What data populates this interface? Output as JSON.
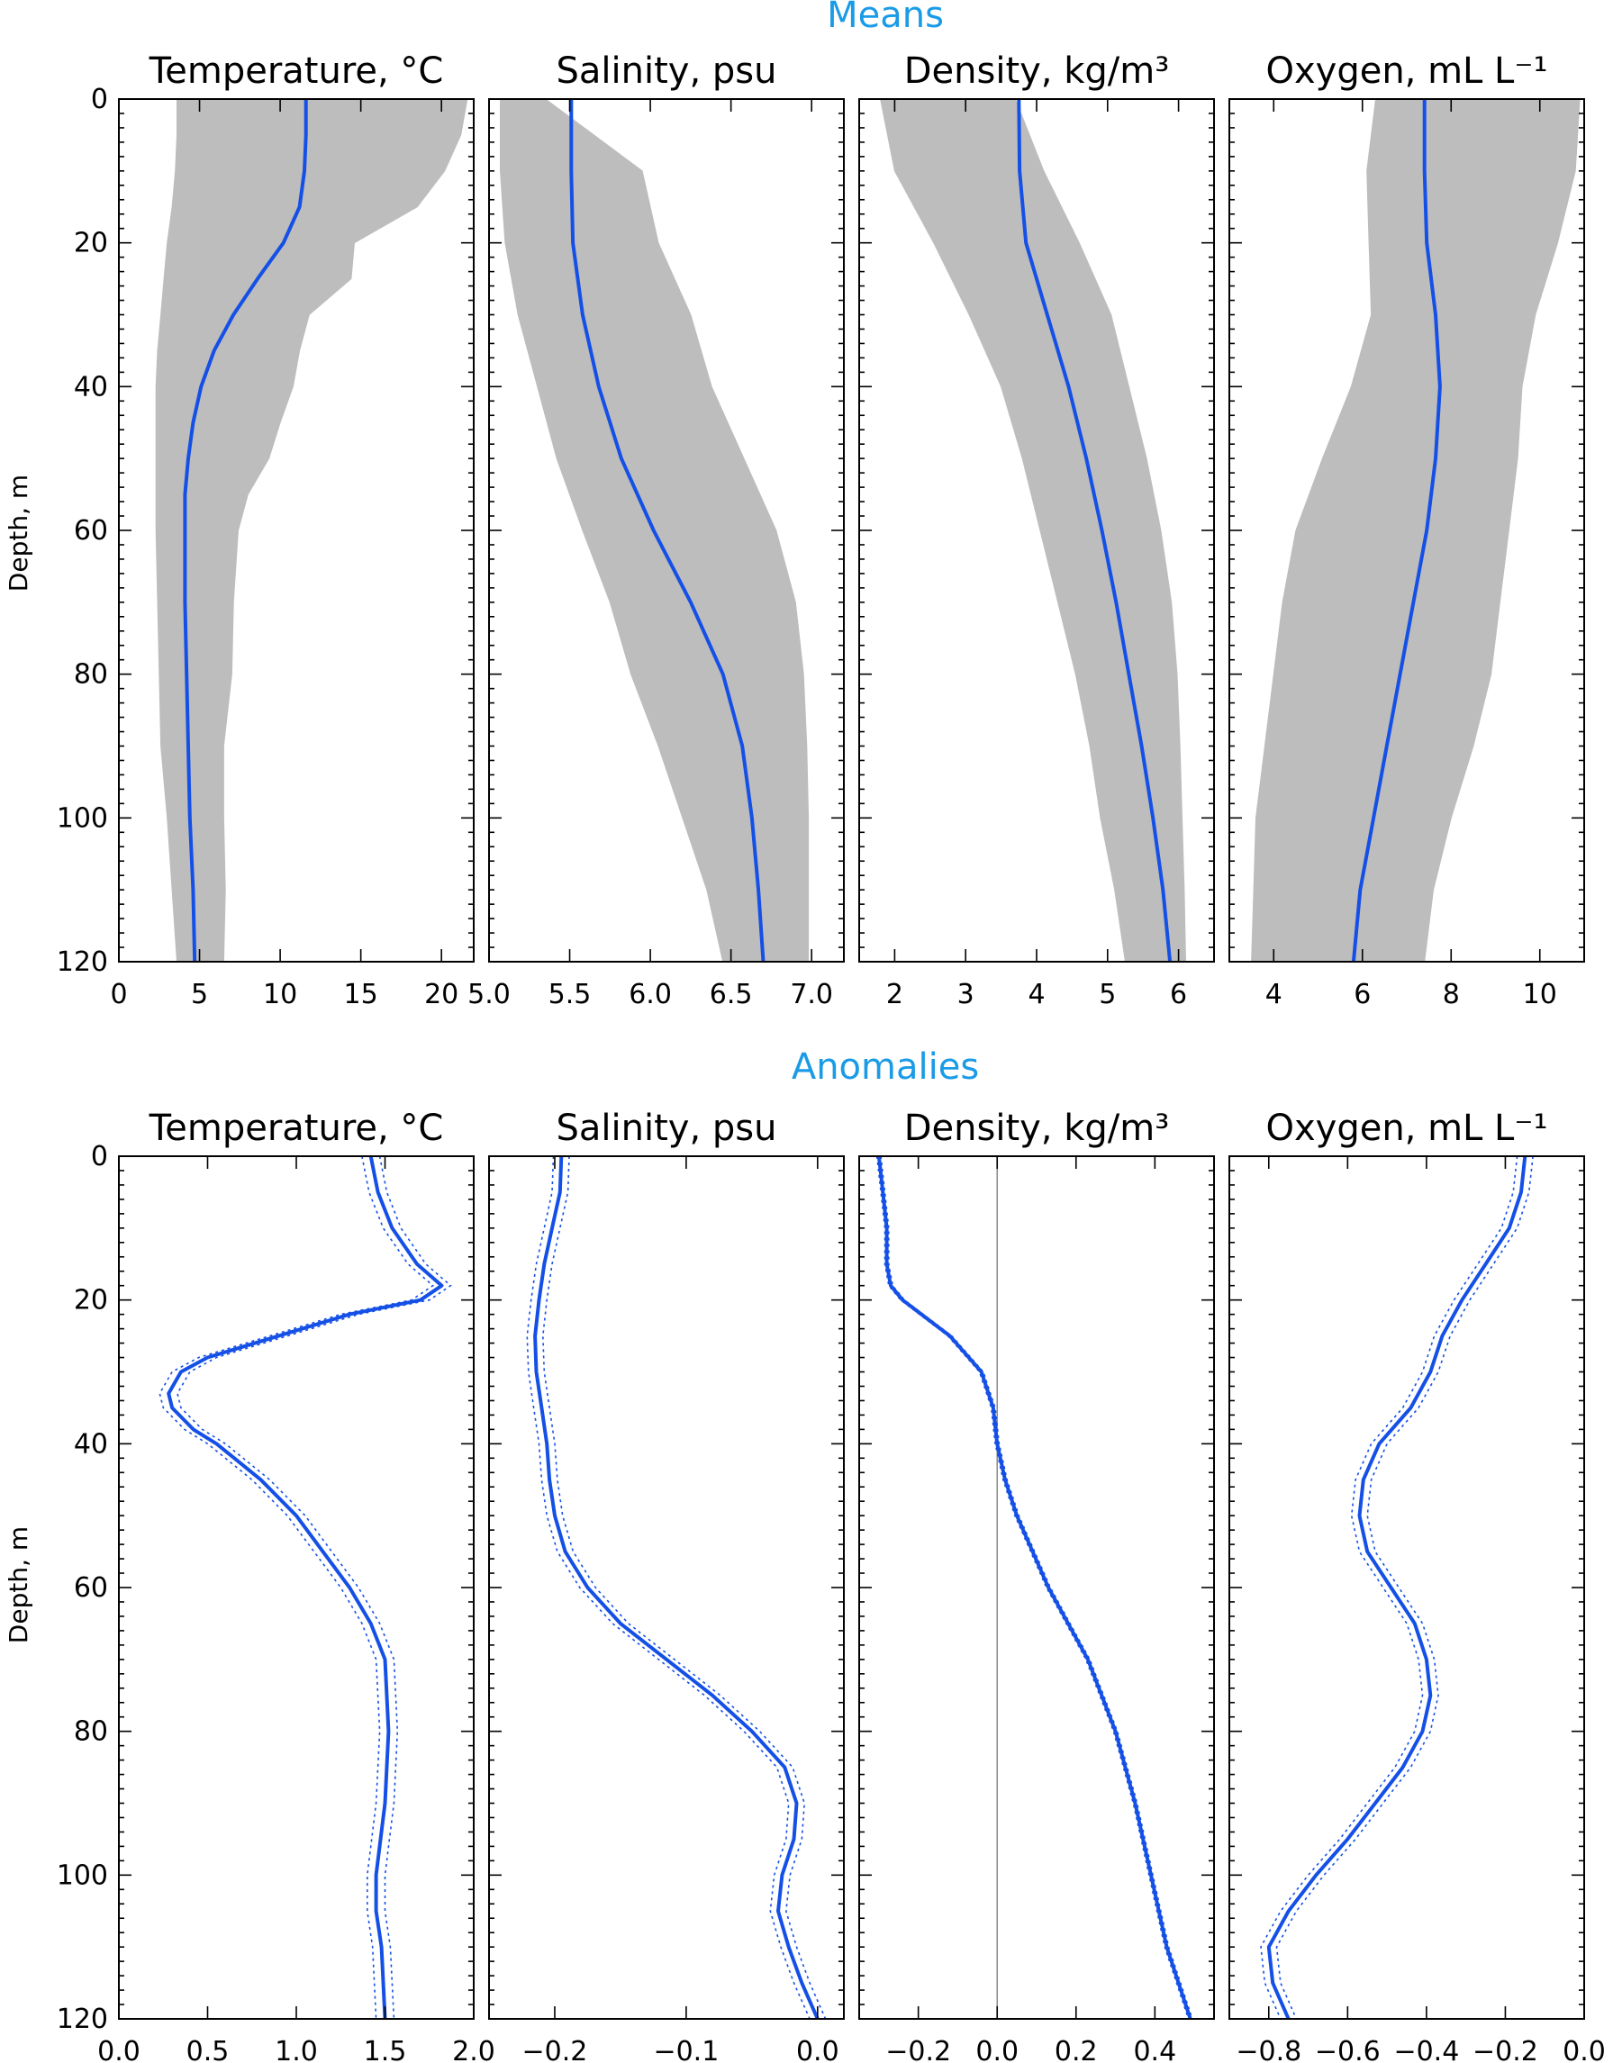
{
  "sections": {
    "means_title": "Means",
    "anomalies_title": "Anomalies"
  },
  "ylabel": "Depth, m",
  "colors": {
    "mean_line": "#1550e6",
    "spread_fill": "#bdbdbd",
    "section_title": "#1a9be6",
    "zero_line": "#8a8a8a"
  },
  "chart_data": [
    {
      "type": "line",
      "group": "Means",
      "title": "Temperature, °C",
      "xlabel": "",
      "ylabel": "Depth, m",
      "xlim": [
        0,
        22
      ],
      "ylim": [
        120,
        0
      ],
      "xticks": [
        0,
        5,
        10,
        15,
        20
      ],
      "xtick_labels": [
        "0",
        "5",
        "10",
        "15",
        "20"
      ],
      "yticks": [
        0,
        20,
        40,
        60,
        80,
        100,
        120
      ],
      "ytick_labels": [
        "0",
        "20",
        "40",
        "60",
        "80",
        "100",
        "120"
      ],
      "depth": [
        0,
        5,
        10,
        15,
        20,
        25,
        30,
        35,
        40,
        45,
        50,
        55,
        60,
        70,
        80,
        90,
        100,
        110,
        120
      ],
      "mean": [
        11.6,
        11.6,
        11.5,
        11.2,
        10.2,
        8.6,
        7.1,
        5.9,
        5.1,
        4.6,
        4.3,
        4.1,
        4.1,
        4.1,
        4.2,
        4.3,
        4.4,
        4.6,
        4.7
      ],
      "spread_left": [
        3.6,
        3.6,
        3.5,
        3.3,
        3.0,
        2.8,
        2.6,
        2.4,
        2.3,
        2.3,
        2.3,
        2.3,
        2.3,
        2.4,
        2.5,
        2.6,
        3.0,
        3.3,
        3.6
      ],
      "spread_right": [
        21.6,
        21.2,
        20.2,
        18.5,
        14.6,
        14.4,
        11.8,
        11.2,
        10.8,
        10.0,
        9.3,
        8.0,
        7.4,
        7.1,
        7.0,
        6.5,
        6.5,
        6.6,
        6.5
      ]
    },
    {
      "type": "line",
      "group": "Means",
      "title": "Salinity, psu",
      "xlabel": "",
      "ylabel": "",
      "xlim": [
        5.0,
        7.2
      ],
      "ylim": [
        120,
        0
      ],
      "xticks": [
        5.0,
        5.5,
        6.0,
        6.5,
        7.0
      ],
      "xtick_labels": [
        "5.0",
        "5.5",
        "6.0",
        "6.5",
        "7.0"
      ],
      "yticks": [
        0,
        20,
        40,
        60,
        80,
        100,
        120
      ],
      "depth": [
        0,
        10,
        20,
        30,
        40,
        50,
        60,
        70,
        80,
        90,
        100,
        110,
        120
      ],
      "mean": [
        5.51,
        5.51,
        5.52,
        5.58,
        5.68,
        5.82,
        6.02,
        6.25,
        6.45,
        6.57,
        6.63,
        6.67,
        6.7
      ],
      "spread_left": [
        5.07,
        5.07,
        5.1,
        5.18,
        5.3,
        5.42,
        5.58,
        5.75,
        5.88,
        6.05,
        6.2,
        6.35,
        6.45
      ],
      "spread_right": [
        5.35,
        5.95,
        6.05,
        6.25,
        6.38,
        6.58,
        6.78,
        6.9,
        6.95,
        6.97,
        6.98,
        6.98,
        6.98
      ]
    },
    {
      "type": "line",
      "group": "Means",
      "title": "Density, kg/m³",
      "xlabel": "",
      "ylabel": "",
      "xlim": [
        1.5,
        6.5
      ],
      "ylim": [
        120,
        0
      ],
      "xticks": [
        2,
        3,
        4,
        5,
        6
      ],
      "xtick_labels": [
        "2",
        "3",
        "4",
        "5",
        "6"
      ],
      "yticks": [
        0,
        20,
        40,
        60,
        80,
        100,
        120
      ],
      "depth": [
        0,
        10,
        20,
        30,
        40,
        50,
        60,
        70,
        80,
        90,
        100,
        110,
        120
      ],
      "mean": [
        3.75,
        3.76,
        3.85,
        4.15,
        4.45,
        4.7,
        4.92,
        5.12,
        5.3,
        5.48,
        5.64,
        5.78,
        5.88
      ],
      "spread_left": [
        1.8,
        2.0,
        2.55,
        3.05,
        3.5,
        3.8,
        4.05,
        4.3,
        4.55,
        4.75,
        4.9,
        5.1,
        5.25
      ],
      "spread_right": [
        3.7,
        4.1,
        4.6,
        5.05,
        5.3,
        5.55,
        5.75,
        5.9,
        5.98,
        6.02,
        6.05,
        6.08,
        6.1
      ]
    },
    {
      "type": "line",
      "group": "Means",
      "title": "Oxygen, mL L⁻¹",
      "xlabel": "",
      "ylabel": "",
      "xlim": [
        3.0,
        11.0
      ],
      "ylim": [
        120,
        0
      ],
      "xticks": [
        4,
        6,
        8,
        10
      ],
      "xtick_labels": [
        "4",
        "6",
        "8",
        "10"
      ],
      "yticks": [
        0,
        20,
        40,
        60,
        80,
        100,
        120
      ],
      "depth": [
        0,
        10,
        20,
        30,
        40,
        50,
        60,
        70,
        80,
        90,
        100,
        110,
        120
      ],
      "mean": [
        7.4,
        7.4,
        7.45,
        7.65,
        7.75,
        7.65,
        7.45,
        7.15,
        6.85,
        6.55,
        6.25,
        5.95,
        5.8
      ],
      "spread_left": [
        6.3,
        6.1,
        6.15,
        6.2,
        5.75,
        5.1,
        4.5,
        4.2,
        4.0,
        3.8,
        3.6,
        3.55,
        3.5
      ],
      "spread_right": [
        10.9,
        10.8,
        10.4,
        9.9,
        9.6,
        9.5,
        9.3,
        9.1,
        8.9,
        8.5,
        8.0,
        7.6,
        7.4
      ]
    },
    {
      "type": "line",
      "group": "Anomalies",
      "title": "Temperature, °C",
      "xlabel": "",
      "ylabel": "Depth, m",
      "xlim": [
        0.0,
        2.0
      ],
      "ylim": [
        120,
        0
      ],
      "xticks": [
        0.0,
        0.5,
        1.0,
        1.5,
        2.0
      ],
      "xtick_labels": [
        "0.0",
        "0.5",
        "1.0",
        "1.5",
        "2.0"
      ],
      "yticks": [
        0,
        20,
        40,
        60,
        80,
        100,
        120
      ],
      "ytick_labels": [
        "0",
        "20",
        "40",
        "60",
        "80",
        "100",
        "120"
      ],
      "depth": [
        0,
        5,
        10,
        15,
        18,
        20,
        22,
        25,
        28,
        30,
        33,
        35,
        38,
        40,
        45,
        50,
        55,
        60,
        65,
        70,
        80,
        90,
        100,
        105,
        110,
        120
      ],
      "mean": [
        1.42,
        1.46,
        1.54,
        1.68,
        1.82,
        1.7,
        1.3,
        0.9,
        0.5,
        0.35,
        0.28,
        0.3,
        0.42,
        0.55,
        0.8,
        1.0,
        1.15,
        1.3,
        1.42,
        1.5,
        1.52,
        1.5,
        1.45,
        1.45,
        1.48,
        1.5
      ],
      "ci_half_width": 0.05
    },
    {
      "type": "line",
      "group": "Anomalies",
      "title": "Salinity, psu",
      "xlabel": "",
      "ylabel": "",
      "xlim": [
        -0.25,
        0.02
      ],
      "ylim": [
        120,
        0
      ],
      "xticks": [
        -0.2,
        -0.1,
        0.0
      ],
      "xtick_labels": [
        "−0.2",
        "−0.1",
        "0.0"
      ],
      "yticks": [
        0,
        20,
        40,
        60,
        80,
        100,
        120
      ],
      "depth": [
        0,
        5,
        10,
        15,
        20,
        25,
        30,
        35,
        40,
        45,
        50,
        55,
        60,
        65,
        70,
        75,
        80,
        85,
        90,
        95,
        100,
        105,
        110,
        115,
        120
      ],
      "mean": [
        -0.195,
        -0.196,
        -0.202,
        -0.208,
        -0.212,
        -0.215,
        -0.214,
        -0.21,
        -0.206,
        -0.204,
        -0.2,
        -0.192,
        -0.175,
        -0.15,
        -0.115,
        -0.08,
        -0.05,
        -0.025,
        -0.016,
        -0.018,
        -0.027,
        -0.03,
        -0.022,
        -0.012,
        0.0
      ],
      "ci_half_width": 0.006
    },
    {
      "type": "line",
      "group": "Anomalies",
      "title": "Density, kg/m³",
      "xlabel": "",
      "ylabel": "",
      "xlim": [
        -0.35,
        0.55
      ],
      "ylim": [
        120,
        0
      ],
      "xticks": [
        -0.2,
        0.0,
        0.2,
        0.4
      ],
      "xtick_labels": [
        "−0.2",
        "0.0",
        "0.2",
        "0.4"
      ],
      "yticks": [
        0,
        20,
        40,
        60,
        80,
        100,
        120
      ],
      "zero_line": 0.0,
      "depth": [
        0,
        5,
        10,
        15,
        18,
        20,
        25,
        30,
        35,
        40,
        45,
        50,
        60,
        70,
        80,
        90,
        100,
        110,
        115,
        120
      ],
      "mean": [
        -0.3,
        -0.29,
        -0.28,
        -0.28,
        -0.27,
        -0.24,
        -0.12,
        -0.04,
        -0.01,
        0.0,
        0.02,
        0.05,
        0.13,
        0.23,
        0.3,
        0.35,
        0.39,
        0.43,
        0.46,
        0.49
      ],
      "ci_half_width": 0.005
    },
    {
      "type": "line",
      "group": "Anomalies",
      "title": "Oxygen, mL L⁻¹",
      "xlabel": "",
      "ylabel": "",
      "xlim": [
        -0.9,
        0.0
      ],
      "ylim": [
        120,
        0
      ],
      "xticks": [
        -0.8,
        -0.6,
        -0.4,
        -0.2,
        0.0
      ],
      "xtick_labels": [
        "−0.8",
        "−0.6",
        "−0.4",
        "−0.2",
        "0.0"
      ],
      "yticks": [
        0,
        20,
        40,
        60,
        80,
        100,
        120
      ],
      "depth": [
        0,
        5,
        10,
        15,
        20,
        25,
        30,
        35,
        40,
        45,
        50,
        55,
        60,
        65,
        70,
        75,
        80,
        85,
        90,
        95,
        100,
        105,
        110,
        115,
        120
      ],
      "mean": [
        -0.15,
        -0.16,
        -0.19,
        -0.25,
        -0.31,
        -0.36,
        -0.39,
        -0.44,
        -0.52,
        -0.56,
        -0.57,
        -0.55,
        -0.49,
        -0.43,
        -0.4,
        -0.39,
        -0.41,
        -0.46,
        -0.53,
        -0.6,
        -0.68,
        -0.75,
        -0.8,
        -0.79,
        -0.75
      ],
      "ci_half_width": 0.02
    }
  ]
}
